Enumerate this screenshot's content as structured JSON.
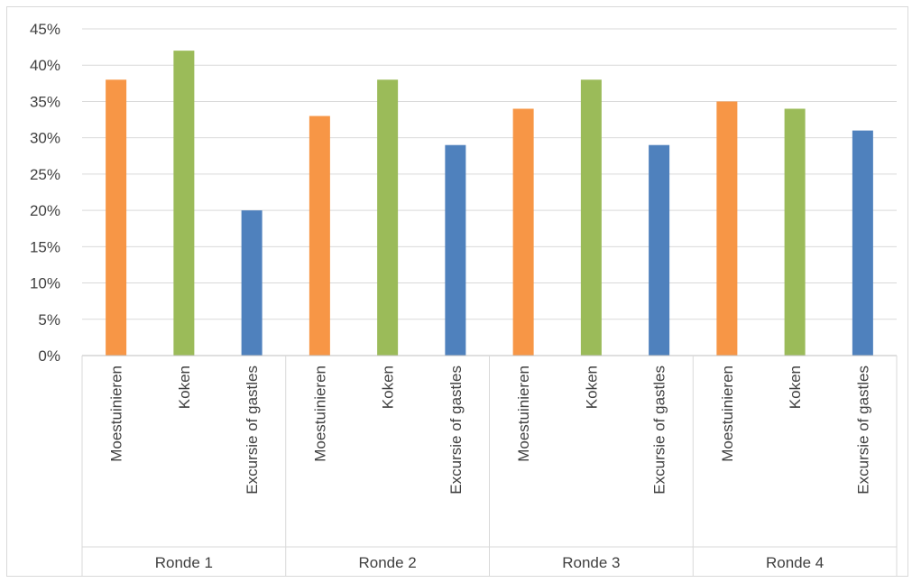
{
  "chart_data": {
    "type": "bar",
    "groups": [
      "Ronde 1",
      "Ronde 2",
      "Ronde 3",
      "Ronde 4"
    ],
    "categories": [
      "Moestuinieren",
      "Koken",
      "Excursie of gastles"
    ],
    "category_colors": [
      "#F79646",
      "#9BBB59",
      "#4F81BD"
    ],
    "values": [
      [
        38,
        42,
        20
      ],
      [
        33,
        38,
        29
      ],
      [
        34,
        38,
        29
      ],
      [
        35,
        34,
        31
      ]
    ],
    "unit": "%",
    "ylim": [
      0,
      45
    ],
    "y_ticks": [
      "0%",
      "5%",
      "10%",
      "15%",
      "20%",
      "25%",
      "30%",
      "35%",
      "40%",
      "45%"
    ],
    "grid": true,
    "legend": "none"
  }
}
